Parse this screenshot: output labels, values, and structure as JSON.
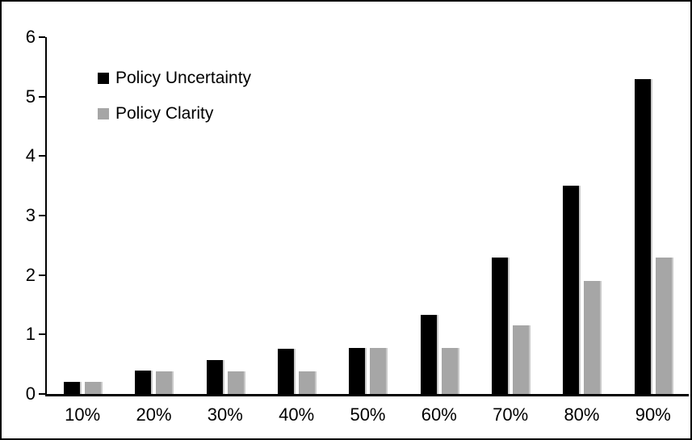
{
  "chart_data": {
    "type": "bar",
    "title": "",
    "xlabel": "",
    "ylabel": "",
    "categories": [
      "10%",
      "20%",
      "30%",
      "40%",
      "50%",
      "60%",
      "70%",
      "80%",
      "90%"
    ],
    "series": [
      {
        "name": "Policy Uncertainty",
        "color": "#000000",
        "values": [
          0.2,
          0.4,
          0.57,
          0.76,
          0.78,
          1.33,
          2.3,
          3.5,
          5.3
        ]
      },
      {
        "name": "Policy Clarity",
        "color": "#a6a6a6",
        "values": [
          0.2,
          0.38,
          0.38,
          0.38,
          0.78,
          0.78,
          1.15,
          1.9,
          2.3
        ]
      }
    ],
    "ylim": [
      0,
      6
    ],
    "yticks": [
      0,
      1,
      2,
      3,
      4,
      5,
      6
    ],
    "grid": false,
    "legend_position": "inside-top-left",
    "colors": {
      "bar_shadow": "#c9c9c9",
      "frame_border": "#000000",
      "background": "#ffffff"
    }
  }
}
